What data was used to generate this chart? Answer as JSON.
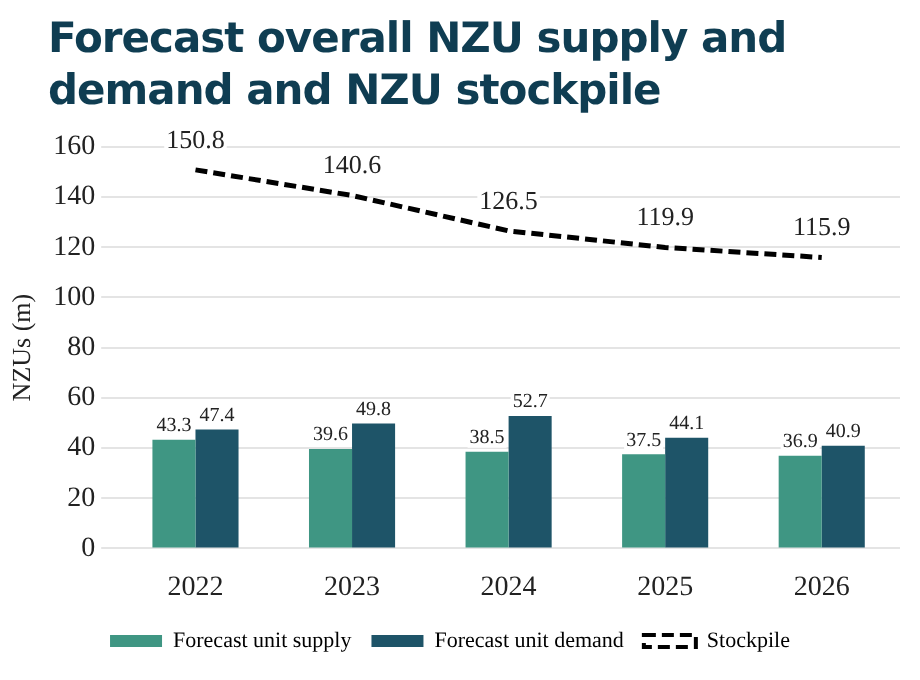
{
  "chart_data": {
    "type": "bar",
    "title": "Forecast overall NZU supply and demand and NZU stockpile",
    "ylabel": "NZUs (m)",
    "categories": [
      "2022",
      "2023",
      "2024",
      "2025",
      "2026"
    ],
    "series": [
      {
        "name": "Forecast unit supply",
        "color": "#3f9683",
        "values": [
          43.3,
          39.6,
          38.5,
          37.5,
          36.9
        ]
      },
      {
        "name": "Forecast unit demand",
        "color": "#1e5468",
        "values": [
          47.4,
          49.8,
          52.7,
          44.1,
          40.9
        ]
      },
      {
        "name": "Stockpile",
        "type": "line",
        "color": "#000000",
        "line_style": "dashed",
        "values": [
          150.8,
          140.6,
          126.5,
          119.9,
          115.9
        ]
      }
    ],
    "ylim": [
      0,
      160
    ],
    "yticks": [
      0,
      20,
      40,
      60,
      80,
      100,
      120,
      140,
      160
    ],
    "grid": "y",
    "legend": "bottom",
    "data_labels": true,
    "marker": "none"
  }
}
